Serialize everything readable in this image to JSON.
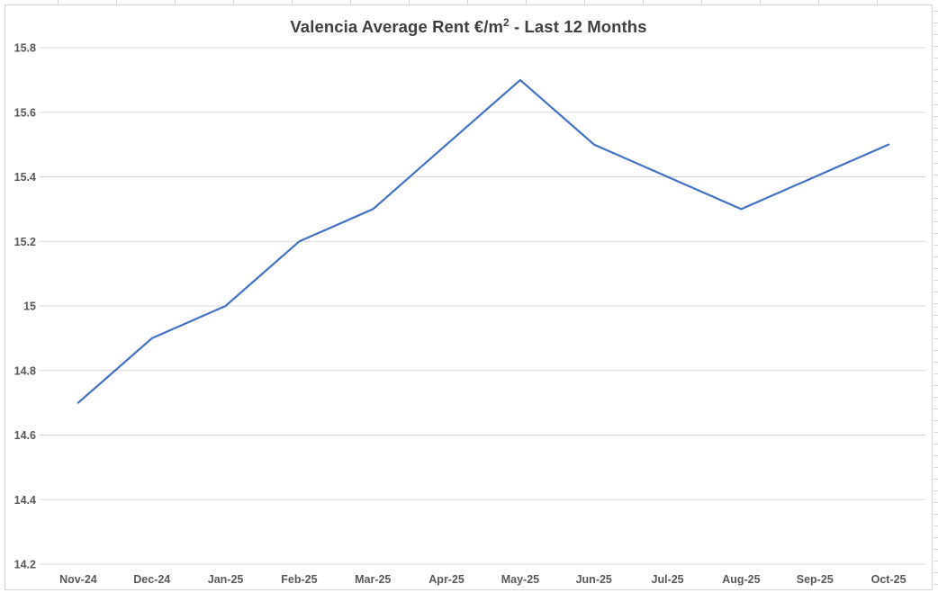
{
  "chart": {
    "title_prefix": "Valencia Average Rent €/m",
    "title_sup": "2",
    "title_suffix": " - Last 12 Months"
  },
  "chart_data": {
    "type": "line",
    "title": "Valencia Average Rent €/m² - Last 12 Months",
    "categories": [
      "Nov-24",
      "Dec-24",
      "Jan-25",
      "Feb-25",
      "Mar-25",
      "Apr-25",
      "May-25",
      "Jun-25",
      "Jul-25",
      "Aug-25",
      "Sep-25",
      "Oct-25"
    ],
    "values": [
      14.7,
      14.9,
      15.0,
      15.2,
      15.3,
      15.5,
      15.7,
      15.5,
      15.4,
      15.3,
      15.4,
      15.5
    ],
    "xlabel": "",
    "ylabel": "",
    "ylim": [
      14.2,
      15.8
    ],
    "ytick_labels": [
      "15.8",
      "15.6",
      "15.4",
      "15.2",
      "15",
      "14.8",
      "14.6",
      "14.4",
      "14.2"
    ],
    "grid": "horizontal",
    "legend": "none"
  },
  "colors": {
    "line": "#4472C4",
    "gridline": "#D9D9D9",
    "axis_label": "#595959",
    "title": "#404040",
    "frame_border": "#D6D6D6"
  }
}
